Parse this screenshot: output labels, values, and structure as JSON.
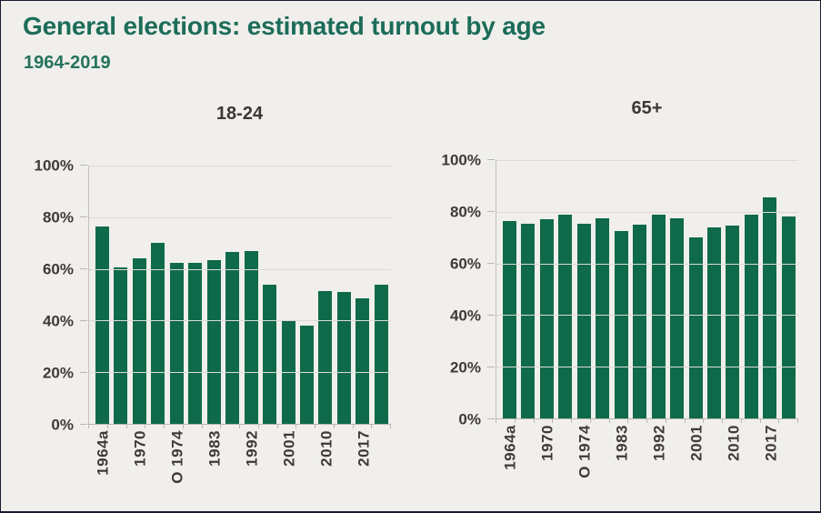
{
  "header": {
    "title": "General elections: estimated turnout by age",
    "subtitle": "1964-2019"
  },
  "colors": {
    "bar": "#0f6a4b",
    "title_text": "#1c6d59",
    "subtitle_text": "#25735d",
    "axis_text": "#3e3a36",
    "gridline": "#dcdad6",
    "background": "#f0efec",
    "border": "#161c2e"
  },
  "chart_data": [
    {
      "type": "bar",
      "title": "18-24",
      "x_tick_labels": [
        "1964a",
        "",
        "1970",
        "",
        "O 1974",
        "",
        "1983",
        "",
        "1992",
        "",
        "2001",
        "",
        "2010",
        "",
        "2017",
        ""
      ],
      "values": [
        76.5,
        60.5,
        64,
        70,
        62.5,
        62.5,
        63.5,
        66.5,
        67,
        54,
        40,
        38,
        51.5,
        51,
        48.5,
        54
      ],
      "y_ticks": [
        "0%",
        "20%",
        "40%",
        "60%",
        "80%",
        "100%"
      ],
      "ylim": [
        0,
        100
      ],
      "grid": true,
      "legend": "none",
      "xlabel": "",
      "ylabel": ""
    },
    {
      "type": "bar",
      "title": "65+",
      "x_tick_labels": [
        "1964a",
        "",
        "1970",
        "",
        "O 1974",
        "",
        "1983",
        "",
        "1992",
        "",
        "2001",
        "",
        "2010",
        "",
        "2017",
        ""
      ],
      "values": [
        76.5,
        75.5,
        77,
        79,
        75.5,
        77.5,
        72.5,
        75,
        79,
        77.5,
        70,
        74,
        74.5,
        79,
        85.5,
        78
      ],
      "y_ticks": [
        "0%",
        "20%",
        "40%",
        "60%",
        "80%",
        "100%"
      ],
      "ylim": [
        0,
        100
      ],
      "grid": true,
      "legend": "none",
      "xlabel": "",
      "ylabel": ""
    }
  ]
}
